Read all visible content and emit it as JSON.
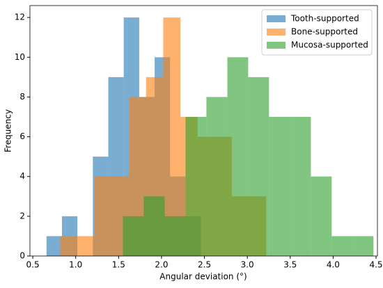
{
  "chart_data": {
    "type": "histogram",
    "xlabel": "Angular deviation (°)",
    "ylabel": "Frequency",
    "series": [
      {
        "name": "Tooth-supported",
        "color": "#1f77b4",
        "alpha": 0.6,
        "bins": [
          0.66,
          0.84,
          1.02,
          1.2,
          1.38,
          1.56,
          1.74,
          1.92,
          2.1,
          2.28,
          2.46
        ],
        "values": [
          1,
          2,
          0,
          5,
          9,
          12,
          8,
          10,
          4,
          2
        ]
      },
      {
        "name": "Bone-supported",
        "color": "#ff7f0e",
        "alpha": 0.6,
        "bins": [
          0.82,
          1.02,
          1.22,
          1.42,
          1.62,
          1.82,
          2.02,
          2.22,
          2.42,
          2.62,
          2.82,
          3.02,
          3.22
        ],
        "values": [
          1,
          1,
          4,
          4,
          8,
          9,
          12,
          7,
          6,
          6,
          3,
          3
        ]
      },
      {
        "name": "Mucosa-supported",
        "color": "#2ca02c",
        "alpha": 0.6,
        "bins": [
          1.55,
          1.793,
          2.037,
          2.28,
          2.523,
          2.767,
          3.01,
          3.253,
          3.497,
          3.74,
          3.983,
          4.227,
          4.47
        ],
        "values": [
          2,
          3,
          2,
          7,
          8,
          10,
          9,
          7,
          7,
          4,
          1,
          1
        ]
      }
    ],
    "xlim": [
      0.467,
      4.516
    ],
    "ylim": [
      0,
      12.6
    ],
    "xticks": [
      0.5,
      {
        "value": 1,
        "label": "1.0"
      },
      1.5,
      {
        "value": 2,
        "label": "2.0"
      },
      2.5,
      {
        "value": 3,
        "label": "3.0"
      },
      3.5,
      {
        "value": 4,
        "label": "4.0"
      },
      4.5
    ],
    "yticks": [
      0,
      2,
      4,
      6,
      8,
      10,
      12
    ],
    "legend": "upper right"
  }
}
